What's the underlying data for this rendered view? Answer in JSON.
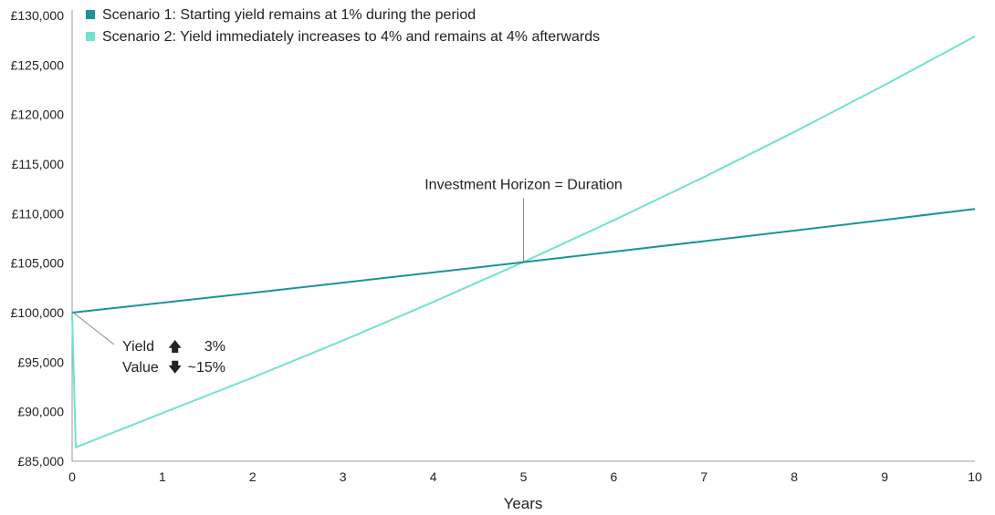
{
  "chart_data": {
    "type": "line",
    "xlabel": "Years",
    "ylabel": "",
    "xlim": [
      0,
      10
    ],
    "ylim": [
      85000,
      130000
    ],
    "x_ticks": [
      0,
      1,
      2,
      3,
      4,
      5,
      6,
      7,
      8,
      9,
      10
    ],
    "x_tick_labels": [
      "0",
      "1",
      "2",
      "3",
      "4",
      "5",
      "6",
      "7",
      "8",
      "9",
      "10"
    ],
    "y_ticks": [
      85000,
      90000,
      95000,
      100000,
      105000,
      110000,
      115000,
      120000,
      125000,
      130000
    ],
    "y_tick_labels": [
      "£85,000",
      "£90,000",
      "£95,000",
      "£100,000",
      "£105,000",
      "£110,000",
      "£115,000",
      "£120,000",
      "£125,000",
      "£130,000"
    ],
    "grid": false,
    "legend_position": "top-left",
    "series": [
      {
        "name": "Scenario 1: Starting yield remains at 1% during the period",
        "color": "#1a9496",
        "x": [
          0,
          1,
          2,
          3,
          4,
          5,
          6,
          7,
          8,
          9,
          10
        ],
        "values": [
          100000,
          101000,
          102010,
          103030,
          104060,
          105101,
          106152,
          107214,
          108286,
          109369,
          110462
        ]
      },
      {
        "name": "Scenario 2: Yield immediately increases to 4% and remains at 4% afterwards",
        "color": "#6fe3cf",
        "x": [
          0,
          0.04,
          1,
          2,
          3,
          4,
          5,
          6,
          7,
          8,
          9,
          10
        ],
        "values": [
          100000,
          86400,
          89856,
          93450,
          97188,
          101076,
          105119,
          109324,
          113697,
          118245,
          122975,
          127894
        ]
      }
    ],
    "annotations": [
      {
        "text": "Investment Horizon = Duration",
        "x": 5,
        "y": 105119
      },
      {
        "text": "Yield",
        "arrow": "up-arrow",
        "value": "3%"
      },
      {
        "text": "Value",
        "arrow": "down-arrow",
        "value": "~15%"
      }
    ]
  }
}
